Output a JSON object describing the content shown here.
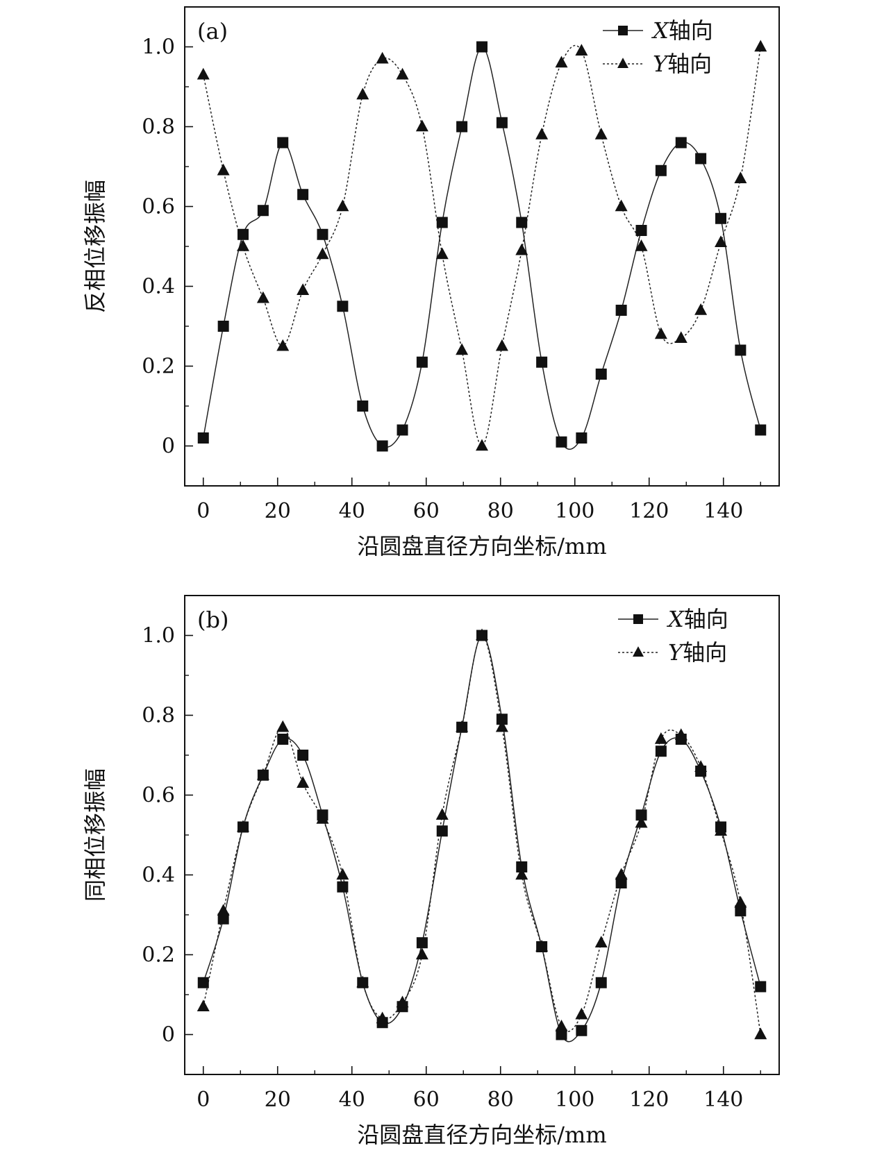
{
  "chart_data": [
    {
      "type": "line",
      "panel_label": "(a)",
      "xlabel": "沿圆盘直径方向坐标/mm",
      "ylabel": "反相位移振幅",
      "xlim": [
        -5,
        155
      ],
      "ylim": [
        -0.1,
        1.1
      ],
      "xticks": [
        0,
        20,
        40,
        60,
        80,
        100,
        120,
        140
      ],
      "xtick_labels": [
        "0",
        "20",
        "40",
        "60",
        "80",
        "100",
        "120",
        "140"
      ],
      "yticks": [
        0,
        0.2,
        0.4,
        0.6,
        0.8,
        1.0
      ],
      "ytick_labels": [
        "0",
        "0.2",
        "0.4",
        "0.6",
        "0.8",
        "1.0"
      ],
      "legend_position": "top-right",
      "grid": false,
      "series": [
        {
          "name": "X轴向",
          "legend_italic": "X",
          "legend_rest": "轴向",
          "marker": "square",
          "line": "solid",
          "x": [
            0,
            5.4,
            10.7,
            16.1,
            21.4,
            26.8,
            32.1,
            37.5,
            42.9,
            48.2,
            53.6,
            58.9,
            64.3,
            69.6,
            75.0,
            80.4,
            85.7,
            91.1,
            96.4,
            101.8,
            107.1,
            112.5,
            117.9,
            123.2,
            128.6,
            133.9,
            139.3,
            144.6,
            150.0
          ],
          "y": [
            0.02,
            0.3,
            0.53,
            0.59,
            0.76,
            0.63,
            0.53,
            0.35,
            0.1,
            0.0,
            0.04,
            0.21,
            0.56,
            0.8,
            1.0,
            0.81,
            0.56,
            0.21,
            0.01,
            0.02,
            0.18,
            0.34,
            0.54,
            0.69,
            0.76,
            0.72,
            0.57,
            0.24,
            0.04
          ]
        },
        {
          "name": "Y轴向",
          "legend_italic": "Y",
          "legend_rest": "轴向",
          "marker": "triangle",
          "line": "dotted",
          "x": [
            0,
            5.4,
            10.7,
            16.1,
            21.4,
            26.8,
            32.1,
            37.5,
            42.9,
            48.2,
            53.6,
            58.9,
            64.3,
            69.6,
            75.0,
            80.4,
            85.7,
            91.1,
            96.4,
            101.8,
            107.1,
            112.5,
            117.9,
            123.2,
            128.6,
            133.9,
            139.3,
            144.6,
            150.0
          ],
          "y": [
            0.93,
            0.69,
            0.5,
            0.37,
            0.25,
            0.39,
            0.48,
            0.6,
            0.88,
            0.97,
            0.93,
            0.8,
            0.48,
            0.24,
            0.0,
            0.25,
            0.49,
            0.78,
            0.96,
            0.99,
            0.78,
            0.6,
            0.5,
            0.28,
            0.27,
            0.34,
            0.51,
            0.67,
            1.0
          ]
        }
      ]
    },
    {
      "type": "line",
      "panel_label": "(b)",
      "xlabel": "沿圆盘直径方向坐标/mm",
      "ylabel": "同相位移振幅",
      "xlim": [
        -5,
        155
      ],
      "ylim": [
        -0.1,
        1.1
      ],
      "xticks": [
        0,
        20,
        40,
        60,
        80,
        100,
        120,
        140
      ],
      "xtick_labels": [
        "0",
        "20",
        "40",
        "60",
        "80",
        "100",
        "120",
        "140"
      ],
      "yticks": [
        0,
        0.2,
        0.4,
        0.6,
        0.8,
        1.0
      ],
      "ytick_labels": [
        "0",
        "0.2",
        "0.4",
        "0.6",
        "0.8",
        "1.0"
      ],
      "legend_position": "top-right",
      "grid": false,
      "series": [
        {
          "name": "X轴向",
          "legend_italic": "X",
          "legend_rest": "轴向",
          "marker": "square",
          "line": "solid",
          "x": [
            0,
            5.4,
            10.7,
            16.1,
            21.4,
            26.8,
            32.1,
            37.5,
            42.9,
            48.2,
            53.6,
            58.9,
            64.3,
            69.6,
            75.0,
            80.4,
            85.7,
            91.1,
            96.4,
            101.8,
            107.1,
            112.5,
            117.9,
            123.2,
            128.6,
            133.9,
            139.3,
            144.6,
            150.0
          ],
          "y": [
            0.13,
            0.29,
            0.52,
            0.65,
            0.74,
            0.7,
            0.55,
            0.37,
            0.13,
            0.03,
            0.07,
            0.23,
            0.51,
            0.77,
            1.0,
            0.79,
            0.42,
            0.22,
            0.0,
            0.01,
            0.13,
            0.38,
            0.55,
            0.71,
            0.74,
            0.66,
            0.52,
            0.31,
            0.12
          ]
        },
        {
          "name": "Y轴向",
          "legend_italic": "Y",
          "legend_rest": "轴向",
          "marker": "triangle",
          "line": "dotted",
          "x": [
            0,
            5.4,
            10.7,
            16.1,
            21.4,
            26.8,
            32.1,
            37.5,
            42.9,
            48.2,
            53.6,
            58.9,
            64.3,
            69.6,
            75.0,
            80.4,
            85.7,
            91.1,
            96.4,
            101.8,
            107.1,
            112.5,
            117.9,
            123.2,
            128.6,
            133.9,
            139.3,
            144.6,
            150.0
          ],
          "y": [
            0.07,
            0.31,
            0.52,
            0.65,
            0.77,
            0.63,
            0.54,
            0.4,
            0.13,
            0.04,
            0.08,
            0.2,
            0.55,
            0.77,
            1.0,
            0.77,
            0.4,
            0.22,
            0.02,
            0.05,
            0.23,
            0.4,
            0.53,
            0.74,
            0.75,
            0.67,
            0.51,
            0.33,
            0.0
          ]
        }
      ]
    }
  ]
}
